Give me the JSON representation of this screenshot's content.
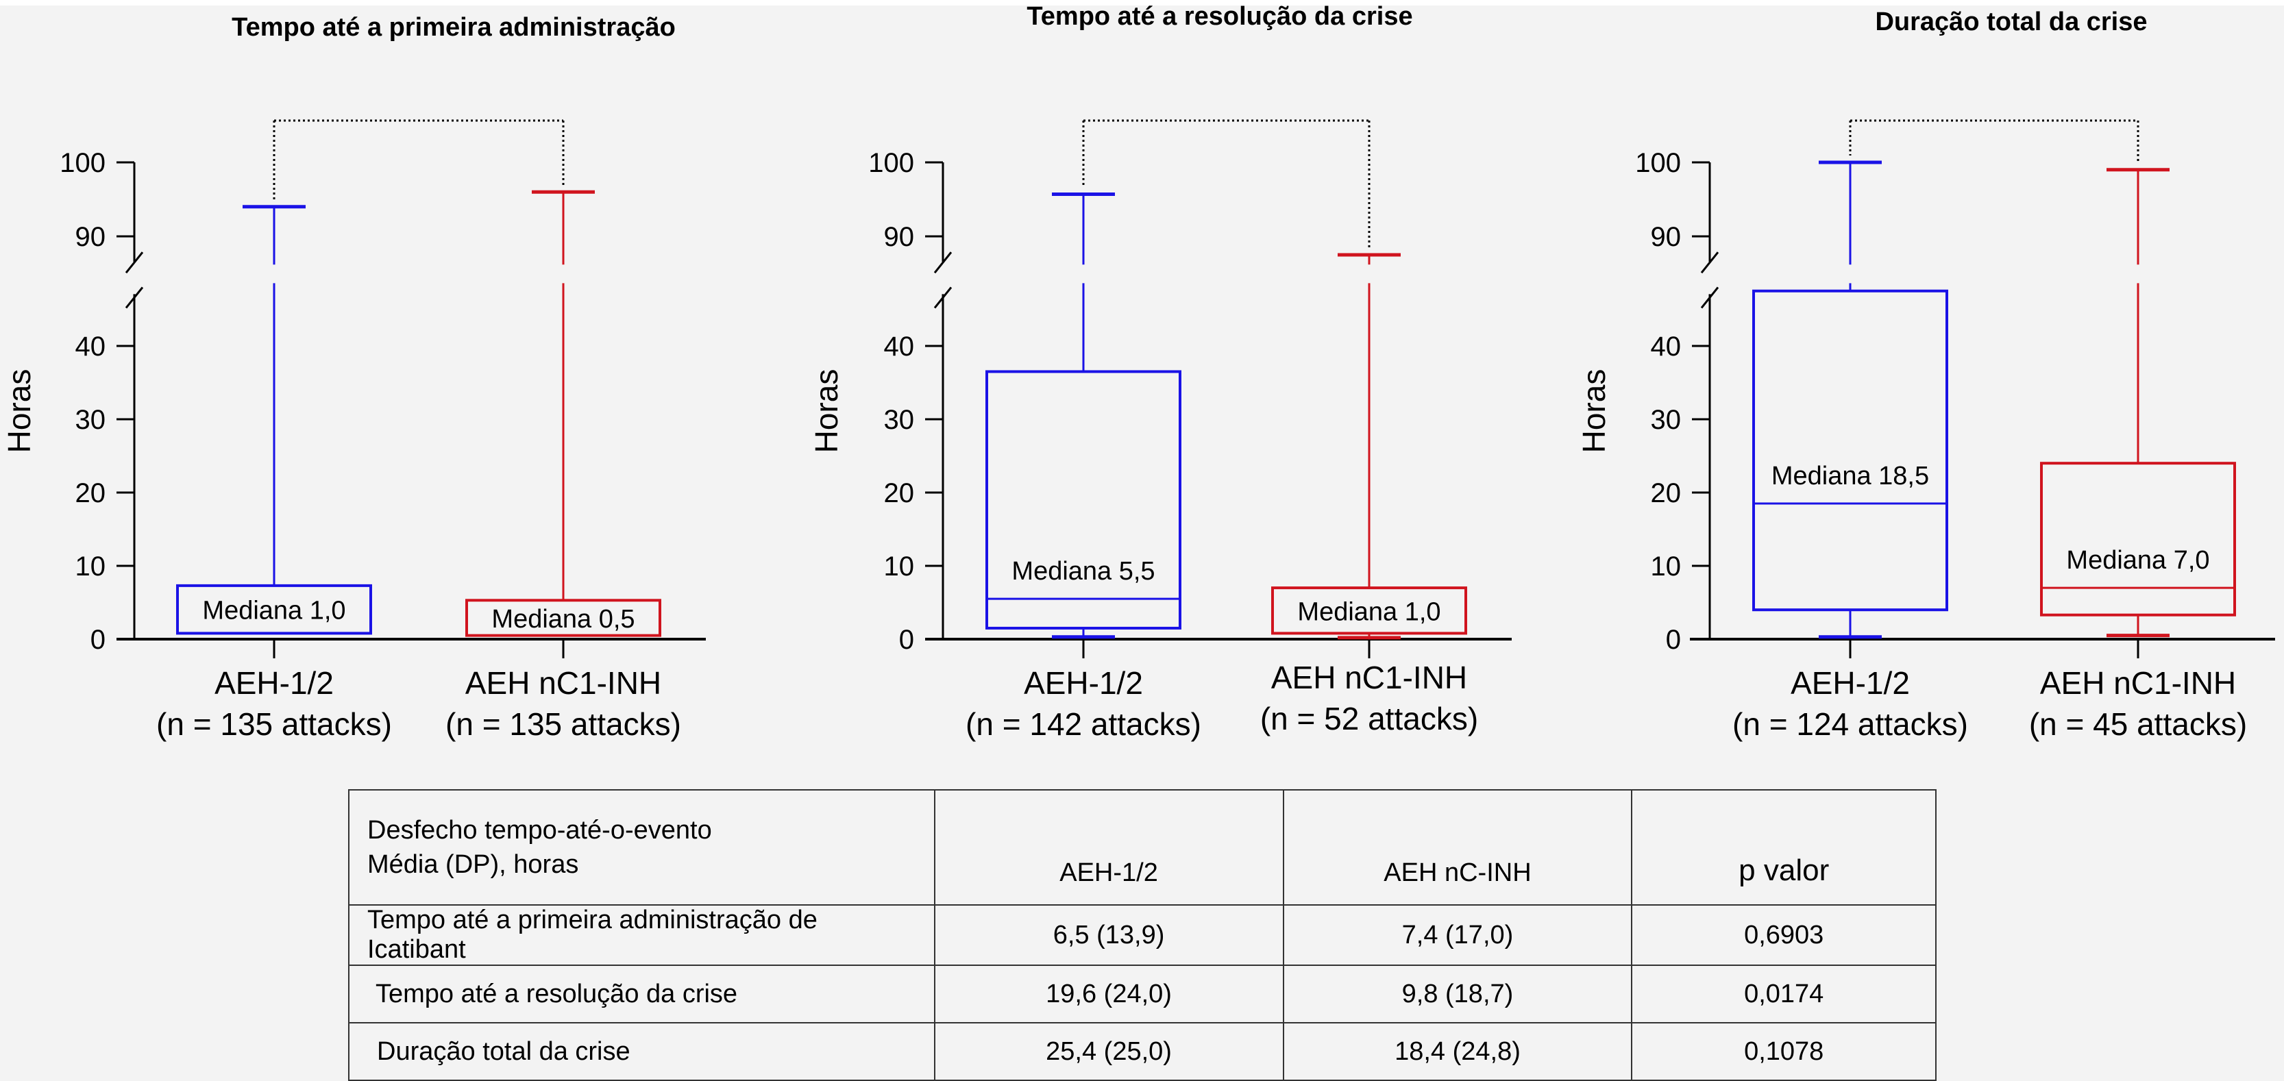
{
  "colors": {
    "background": "#f3f3f3",
    "group1": "#1a12e6",
    "group2": "#d0141e",
    "axis": "#000000",
    "bracket": "#000000"
  },
  "chart_data": [
    {
      "type": "box",
      "title": "Tempo até a primeira administração",
      "ylabel": "Horas",
      "xlabel": "",
      "ylim": [
        0,
        100
      ],
      "y_break": [
        48,
        86
      ],
      "yticks": [
        0,
        10,
        20,
        30,
        40,
        90,
        100
      ],
      "categories": [
        "AEH-1/2",
        "AEH nC1-INH"
      ],
      "category_sublabels": [
        "(n = 135 attacks)",
        "(n = 135 attacks)"
      ],
      "series": [
        {
          "name": "AEH-1/2",
          "color": "#1a12e6",
          "min": 0.8,
          "q1": 0.8,
          "median": 1.0,
          "q3": 7.3,
          "max": 94,
          "median_label": "Mediana 1,0"
        },
        {
          "name": "AEH nC1-INH",
          "color": "#d0141e",
          "min": 0.8,
          "q1": 0.8,
          "median": 0.5,
          "q3": 5.3,
          "max": 96,
          "median_label": "Mediana 0,5"
        }
      ],
      "comparison_bracket": true
    },
    {
      "type": "box",
      "title": "Tempo até a resolução da crise",
      "ylabel": "Horas",
      "xlabel": "",
      "ylim": [
        0,
        100
      ],
      "y_break": [
        48,
        86
      ],
      "yticks": [
        0,
        10,
        20,
        30,
        40,
        90,
        100
      ],
      "categories": [
        "AEH-1/2",
        "AEH nC1-INH"
      ],
      "category_sublabels": [
        "(n = 142 attacks)",
        "(n = 52 attacks)"
      ],
      "series": [
        {
          "name": "AEH-1/2",
          "color": "#1a12e6",
          "min": 0.3,
          "q1": 1.5,
          "median": 5.5,
          "q3": 36.5,
          "max": 95.7,
          "median_label": "Mediana 5,5"
        },
        {
          "name": "AEH nC1-INH",
          "color": "#d0141e",
          "min": 0.2,
          "q1": 0.8,
          "median": 1.0,
          "q3": 7.0,
          "max": 87.5,
          "median_label": "Mediana 1,0"
        }
      ],
      "comparison_bracket": true
    },
    {
      "type": "box",
      "title": "Duração total da crise",
      "ylabel": "Horas",
      "xlabel": "",
      "ylim": [
        0,
        100
      ],
      "y_break": [
        48,
        86
      ],
      "yticks": [
        0,
        10,
        20,
        30,
        40,
        90,
        100
      ],
      "categories": [
        "AEH-1/2",
        "AEH nC1-INH"
      ],
      "category_sublabels": [
        "(n = 124 attacks)",
        "(n = 45 attacks)"
      ],
      "series": [
        {
          "name": "AEH-1/2",
          "color": "#1a12e6",
          "min": 0.3,
          "q1": 4.0,
          "median": 18.5,
          "q3": 47.5,
          "max": 100,
          "median_label": "Mediana 18,5"
        },
        {
          "name": "AEH nC1-INH",
          "color": "#d0141e",
          "min": 0.5,
          "q1": 3.3,
          "median": 7.0,
          "q3": 24.0,
          "max": 99,
          "median_label": "Mediana 7,0"
        }
      ],
      "comparison_bracket": true
    }
  ],
  "table": {
    "header": {
      "col0_line1": "Desfecho tempo-até-o-evento",
      "col0_line2": "Média (DP), horas",
      "col1": "AEH-1/2",
      "col2": "AEH nC-INH",
      "col3": "p valor"
    },
    "rows": [
      {
        "label": "Tempo até a primeira administração de Icatibant",
        "g1": "6,5 (13,9)",
        "g2": "7,4 (17,0)",
        "p": "0,6903"
      },
      {
        "label": "Tempo até a resolução da crise",
        "g1": "19,6 (24,0)",
        "g2": "9,8 (18,7)",
        "p": "0,0174"
      },
      {
        "label": "Duração total da crise",
        "g1": "25,4 (25,0)",
        "g2": "18,4 (24,8)",
        "p": "0,1078"
      }
    ]
  }
}
